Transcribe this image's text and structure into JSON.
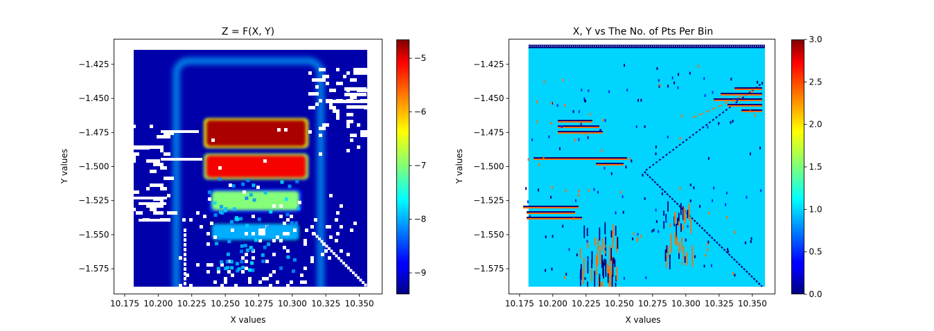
{
  "chart_data": [
    {
      "type": "heatmap",
      "title": "Z = F(X, Y)",
      "xlabel": "X values",
      "ylabel": "Y values",
      "xlim": [
        10.167,
        10.367
      ],
      "ylim": [
        -1.5935,
        -1.4065
      ],
      "data_extent": {
        "x": [
          10.1817,
          10.3602
        ],
        "y": [
          -1.5906,
          -1.4124
        ]
      },
      "x_ticks": [
        10.175,
        10.2,
        10.225,
        10.25,
        10.275,
        10.3,
        10.325,
        10.35
      ],
      "x_tick_labels": [
        "10.175",
        "10.200",
        "10.225",
        "10.250",
        "10.275",
        "10.300",
        "10.325",
        "10.350"
      ],
      "y_ticks": [
        -1.425,
        -1.45,
        -1.475,
        -1.5,
        -1.525,
        -1.55,
        -1.575
      ],
      "y_tick_labels": [
        "−1.425",
        "−1.450",
        "−1.475",
        "−1.500",
        "−1.525",
        "−1.550",
        "−1.575"
      ],
      "colormap": "jet",
      "colorbar": {
        "range": [
          -9.4,
          -4.65
        ],
        "ticks": [
          -9,
          -8,
          -7,
          -6,
          -5
        ],
        "tick_labels": [
          "−9",
          "−8",
          "−7",
          "−6",
          "−5"
        ]
      },
      "background_value": -9.2,
      "frame_value": -8.0,
      "frame": {
        "x": [
          10.2135,
          10.3212
        ],
        "y": [
          -1.5906,
          -1.4225
        ]
      },
      "bands": [
        {
          "x": [
            10.236,
            10.31
          ],
          "y": [
            -1.466,
            -1.485
          ],
          "value": -4.85
        },
        {
          "x": [
            10.236,
            10.31
          ],
          "y": [
            -1.492,
            -1.508
          ],
          "value": -5.2
        },
        {
          "x": [
            10.24,
            10.305
          ],
          "y": [
            -1.518,
            -1.532
          ],
          "value": -7.0
        },
        {
          "x": [
            10.24,
            10.305
          ],
          "y": [
            -1.542,
            -1.554
          ],
          "value": -8.0
        }
      ],
      "grid": false
    },
    {
      "type": "heatmap",
      "title": "X, Y vs The No. of Pts Per Bin",
      "xlabel": "X values",
      "ylabel": "Y values",
      "xlim": [
        10.167,
        10.367
      ],
      "ylim": [
        -1.5935,
        -1.4065
      ],
      "data_extent": {
        "x": [
          10.1817,
          10.3629
        ],
        "y": [
          -1.5906,
          -1.4106
        ]
      },
      "x_ticks": [
        10.175,
        10.2,
        10.225,
        10.25,
        10.275,
        10.3,
        10.325,
        10.35
      ],
      "x_tick_labels": [
        "10.175",
        "10.200",
        "10.225",
        "10.250",
        "10.275",
        "10.300",
        "10.325",
        "10.350"
      ],
      "y_ticks": [
        -1.425,
        -1.45,
        -1.475,
        -1.5,
        -1.525,
        -1.55,
        -1.575
      ],
      "y_tick_labels": [
        "−1.425",
        "−1.450",
        "−1.475",
        "−1.500",
        "−1.525",
        "−1.550",
        "−1.575"
      ],
      "colormap": "jet",
      "colorbar": {
        "range": [
          0,
          3
        ],
        "ticks": [
          0,
          0.5,
          1,
          1.5,
          2,
          2.5,
          3
        ],
        "tick_labels": [
          "0.0",
          "0.5",
          "1.0",
          "1.5",
          "2.0",
          "2.5",
          "3.0"
        ]
      },
      "background_value": 1.0,
      "grid": false
    }
  ]
}
